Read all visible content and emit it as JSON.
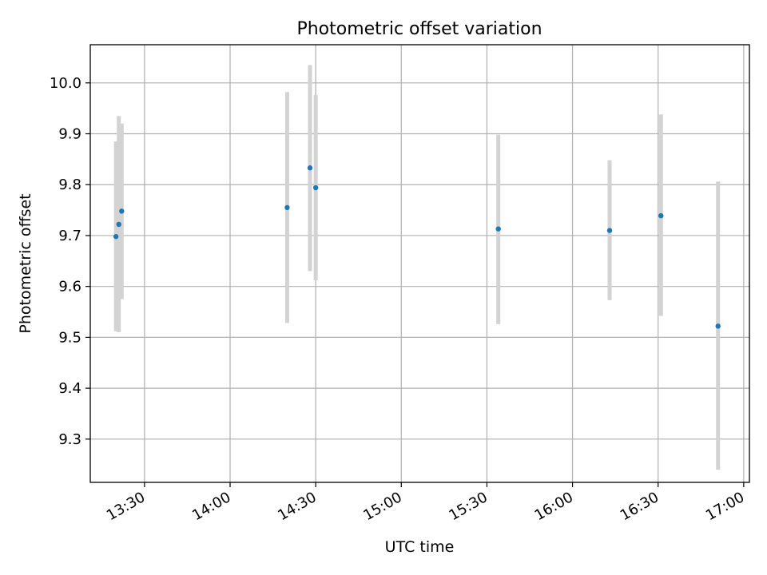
{
  "chart_data": {
    "type": "scatter",
    "title": "Photometric offset variation",
    "xlabel": "UTC time",
    "ylabel": "Photometric offset",
    "xlim": [
      "13:11",
      "17:02"
    ],
    "ylim": [
      9.215,
      10.075
    ],
    "grid": true,
    "x_ticks": [
      "13:30",
      "14:00",
      "14:30",
      "15:00",
      "15:30",
      "16:00",
      "16:30",
      "17:00"
    ],
    "y_ticks": [
      "9.3",
      "9.4",
      "9.5",
      "9.6",
      "9.7",
      "9.8",
      "9.9",
      "10.0"
    ],
    "series": [
      {
        "marker_color": "#1f77b4",
        "errorbar_color": "#d3d3d3",
        "points": [
          {
            "x": "13:20",
            "y": 9.698,
            "err_low": 9.512,
            "err_high": 9.885
          },
          {
            "x": "13:21",
            "y": 9.722,
            "err_low": 9.51,
            "err_high": 9.935
          },
          {
            "x": "13:22",
            "y": 9.748,
            "err_low": 9.575,
            "err_high": 9.92
          },
          {
            "x": "14:20",
            "y": 9.755,
            "err_low": 9.528,
            "err_high": 9.982
          },
          {
            "x": "14:28",
            "y": 9.833,
            "err_low": 9.63,
            "err_high": 10.035
          },
          {
            "x": "14:30",
            "y": 9.794,
            "err_low": 9.612,
            "err_high": 9.976
          },
          {
            "x": "15:34",
            "y": 9.713,
            "err_low": 9.526,
            "err_high": 9.898
          },
          {
            "x": "16:13",
            "y": 9.71,
            "err_low": 9.573,
            "err_high": 9.848
          },
          {
            "x": "16:31",
            "y": 9.739,
            "err_low": 9.542,
            "err_high": 9.938
          },
          {
            "x": "16:51",
            "y": 9.522,
            "err_low": 9.24,
            "err_high": 9.806
          }
        ]
      }
    ]
  }
}
